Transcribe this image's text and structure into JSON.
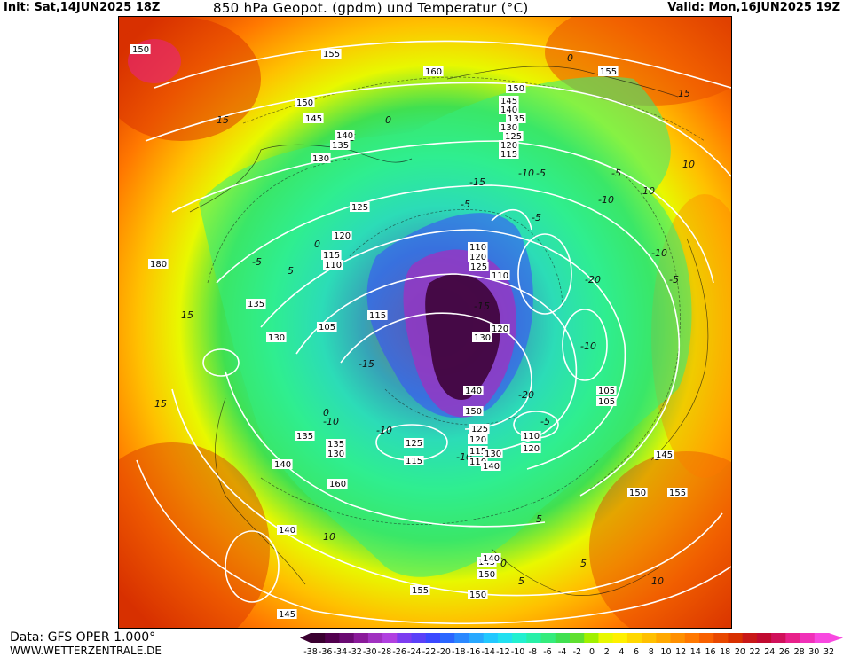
{
  "header": {
    "init": "Init: Sat,14JUN2025 18Z",
    "title": "850 hPa Geopot. (gpdm) und Temperatur (°C)",
    "valid": "Valid: Mon,16JUN2025 19Z"
  },
  "footer": {
    "data_source": "Data: GFS OPER 1.000°",
    "site": "WWW.WETTERZENTRALE.DE"
  },
  "colorbar": {
    "ticks": [
      "-38",
      "-36",
      "-34",
      "-32",
      "-30",
      "-28",
      "-26",
      "-24",
      "-22",
      "-20",
      "-18",
      "-16",
      "-14",
      "-12",
      "-10",
      "-8",
      "-6",
      "-4",
      "-2",
      "0",
      "2",
      "4",
      "6",
      "8",
      "10",
      "12",
      "14",
      "16",
      "18",
      "20",
      "22",
      "24",
      "26",
      "28",
      "30",
      "32"
    ],
    "colors": [
      "#3a0030",
      "#52004e",
      "#6a0a72",
      "#8a1a9a",
      "#a030c0",
      "#b040e0",
      "#7c3cf0",
      "#5a40f8",
      "#3a48ff",
      "#2a66ff",
      "#2a88ff",
      "#28a8ff",
      "#22c8ff",
      "#22e0f0",
      "#22f0d0",
      "#28f0a8",
      "#34ec7c",
      "#40e050",
      "#60e030",
      "#a0f000",
      "#e8f800",
      "#fff000",
      "#ffd800",
      "#ffc000",
      "#ffa800",
      "#ff9000",
      "#ff7800",
      "#f86000",
      "#e84800",
      "#d83000",
      "#c81818",
      "#c00a30",
      "#d0105a",
      "#e8208a",
      "#f030b8",
      "#f848e0"
    ]
  },
  "map": {
    "temperature_labels": [
      "-15",
      "-15",
      "-10",
      "-10",
      "-5",
      "-5",
      "-5",
      "-5",
      "-10",
      "-10",
      "-5",
      "0",
      "0",
      "0",
      "5",
      "5",
      "5",
      "10",
      "10",
      "15",
      "15",
      "-20",
      "-20",
      "-15",
      "-10",
      "-5",
      "0",
      "5",
      "10",
      "15",
      "-5",
      "-10",
      "-5",
      "0",
      "5",
      "10",
      "15",
      "-10"
    ],
    "geopotential_labels": [
      "150",
      "155",
      "160",
      "155",
      "150",
      "145",
      "140",
      "135",
      "130",
      "125",
      "120",
      "115",
      "150",
      "145",
      "140",
      "135",
      "130",
      "125",
      "120",
      "115",
      "110",
      "105",
      "180",
      "135",
      "130",
      "115",
      "110",
      "120",
      "125",
      "110",
      "120",
      "130",
      "140",
      "150",
      "105",
      "135",
      "130",
      "125",
      "120",
      "115",
      "110",
      "105",
      "140",
      "145",
      "150",
      "155",
      "160",
      "140",
      "145",
      "150",
      "155",
      "145",
      "150",
      "140",
      "135",
      "125",
      "115",
      "110",
      "120",
      "130",
      "140"
    ]
  }
}
